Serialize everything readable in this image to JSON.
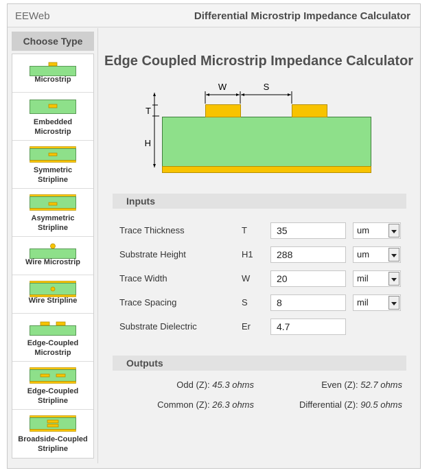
{
  "header": {
    "brand": "EEWeb",
    "title": "Differential Microstrip Impedance Calculator"
  },
  "sidebar": {
    "heading": "Choose Type",
    "items": [
      {
        "line1": "Microstrip",
        "line2": "",
        "icon": "microstrip-icon"
      },
      {
        "line1": "Embedded",
        "line2": "Microstrip",
        "icon": "embedded-microstrip-icon"
      },
      {
        "line1": "Symmetric",
        "line2": "Stripline",
        "icon": "symmetric-stripline-icon"
      },
      {
        "line1": "Asymmetric",
        "line2": "Stripline",
        "icon": "asymmetric-stripline-icon"
      },
      {
        "line1": "Wire Microstrip",
        "line2": "",
        "icon": "wire-microstrip-icon"
      },
      {
        "line1": "Wire Stripline",
        "line2": "",
        "icon": "wire-stripline-icon"
      },
      {
        "line1": "Edge-Coupled",
        "line2": "Microstrip",
        "icon": "edge-coupled-microstrip-icon"
      },
      {
        "line1": "Edge-Coupled",
        "line2": "Stripline",
        "icon": "edge-coupled-stripline-icon"
      },
      {
        "line1": "Broadside-Coupled",
        "line2": "Stripline",
        "icon": "broadside-coupled-stripline-icon"
      }
    ]
  },
  "main": {
    "title": "Edge Coupled Microstrip Impedance Calculator",
    "diagram": {
      "w": "W",
      "s": "S",
      "t": "T",
      "h": "H"
    },
    "inputs": {
      "heading": "Inputs",
      "rows": [
        {
          "label": "Trace Thickness",
          "symbol": "T",
          "value": "35",
          "unit": "um"
        },
        {
          "label": "Substrate Height",
          "symbol": "H1",
          "value": "288",
          "unit": "um"
        },
        {
          "label": "Trace Width",
          "symbol": "W",
          "value": "20",
          "unit": "mil"
        },
        {
          "label": "Trace Spacing",
          "symbol": "S",
          "value": "8",
          "unit": "mil"
        },
        {
          "label": "Substrate Dielectric",
          "symbol": "Er",
          "value": "4.7",
          "unit": ""
        }
      ]
    },
    "outputs": {
      "heading": "Outputs",
      "odd": {
        "label": "Odd (Z):",
        "value": "45.3 ohms"
      },
      "even": {
        "label": "Even (Z):",
        "value": "52.7 ohms"
      },
      "common": {
        "label": "Common (Z):",
        "value": "26.3 ohms"
      },
      "differential": {
        "label": "Differential (Z):",
        "value": "90.5 ohms"
      }
    }
  },
  "colors": {
    "substrate": "#8ee08a",
    "copper": "#f8c300",
    "border": "#c8c8c8"
  }
}
